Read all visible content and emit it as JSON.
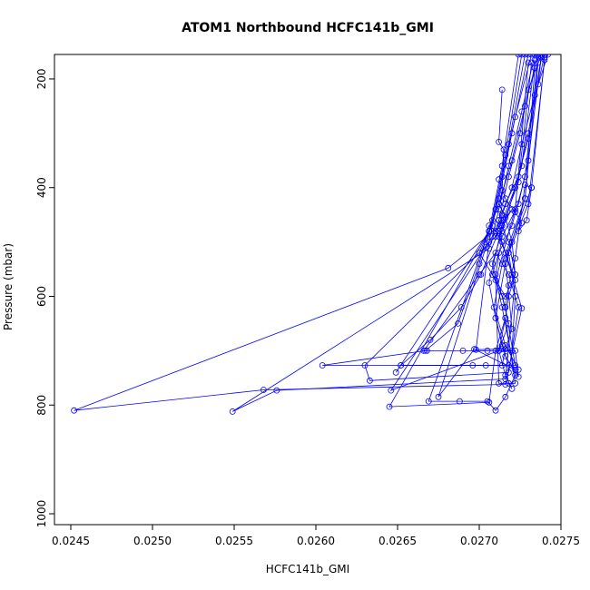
{
  "chart_data": {
    "type": "line",
    "title": "ATOM1 Northbound HCFC141b_GMI",
    "xlabel": "HCFC141b_GMI",
    "ylabel": "Pressure (mbar)",
    "xlim": [
      0.0244,
      0.0275
    ],
    "ylim": [
      1020,
      155
    ],
    "y_reversed": true,
    "x_ticks": [
      "0.0245",
      "0.0250",
      "0.0255",
      "0.0260",
      "0.0265",
      "0.0270",
      "0.0275"
    ],
    "x_tick_values": [
      0.0245,
      0.025,
      0.0255,
      0.026,
      0.0265,
      0.027,
      0.0275
    ],
    "y_ticks": [
      "200",
      "400",
      "600",
      "800",
      "1000"
    ],
    "y_tick_values": [
      200,
      400,
      600,
      800,
      1000
    ],
    "line_color": "#0000ff",
    "marker": "open-circle",
    "grid": false,
    "series": [
      {
        "x": [
          0.0274,
          0.02736,
          0.0273,
          0.02722,
          0.02713,
          0.02681,
          0.02452,
          0.02568,
          0.02716,
          0.02726,
          0.0272,
          0.02714,
          0.0271,
          0.02706,
          0.027,
          0.02687,
          0.02667,
          0.02604,
          0.02696,
          0.02714,
          0.02716,
          0.0272,
          0.02716,
          0.02732,
          0.0274
        ],
        "y": [
          155,
          210,
          310,
          400,
          470,
          548,
          810,
          772,
          762,
          622,
          560,
          500,
          480,
          470,
          540,
          650,
          700,
          727,
          727,
          727,
          697,
          660,
          530,
          400,
          160
        ]
      },
      {
        "x": [
          0.02738,
          0.0273,
          0.02725,
          0.02718,
          0.02712,
          0.02706,
          0.02549,
          0.02576,
          0.02716,
          0.02722,
          0.02716,
          0.02712,
          0.02715,
          0.0272,
          0.02712,
          0.02701,
          0.02689,
          0.0267,
          0.02652,
          0.02704,
          0.02718,
          0.02714,
          0.0271,
          0.02716,
          0.02728,
          0.02736
        ],
        "y": [
          155,
          220,
          300,
          380,
          460,
          512,
          812,
          773,
          752,
          570,
          520,
          490,
          460,
          440,
          480,
          560,
          620,
          680,
          727,
          727,
          727,
          690,
          640,
          540,
          420,
          170
        ]
      },
      {
        "x": [
          0.02742,
          0.02734,
          0.02726,
          0.0272,
          0.02714,
          0.0271,
          0.0263,
          0.02633,
          0.02718,
          0.02724,
          0.02718,
          0.0271,
          0.027,
          0.02666,
          0.02668,
          0.0269,
          0.02705,
          0.0272,
          0.02722,
          0.02718,
          0.0273,
          0.0274
        ],
        "y": [
          155,
          230,
          320,
          400,
          450,
          490,
          727,
          755,
          740,
          620,
          560,
          520,
          560,
          700,
          700,
          700,
          700,
          700,
          600,
          520,
          430,
          165
        ]
      },
      {
        "x": [
          0.02736,
          0.02728,
          0.0272,
          0.02712,
          0.02706,
          0.02649,
          0.02652,
          0.02722,
          0.02716,
          0.0271,
          0.02714,
          0.02724,
          0.0273,
          0.02738
        ],
        "y": [
          155,
          250,
          350,
          430,
          480,
          740,
          727,
          727,
          620,
          560,
          490,
          430,
          350,
          160
        ]
      },
      {
        "x": [
          0.02734,
          0.02726,
          0.02718,
          0.02712,
          0.02708,
          0.02646,
          0.02712,
          0.02718,
          0.02714,
          0.02708,
          0.02712,
          0.0272,
          0.02728,
          0.02736
        ],
        "y": [
          155,
          260,
          360,
          440,
          490,
          773,
          700,
          650,
          600,
          560,
          520,
          470,
          380,
          160
        ]
      },
      {
        "x": [
          0.02732,
          0.02722,
          0.02714,
          0.02708,
          0.02645,
          0.02706,
          0.0271,
          0.02716,
          0.02722,
          0.02712,
          0.0271,
          0.02722,
          0.0273
        ],
        "y": [
          155,
          270,
          380,
          470,
          803,
          795,
          700,
          640,
          760,
          760,
          570,
          440,
          170
        ]
      },
      {
        "x": [
          0.0273,
          0.0272,
          0.02712,
          0.02706,
          0.02669,
          0.02688,
          0.02705,
          0.0271,
          0.02716,
          0.02722,
          0.02714,
          0.02708,
          0.02714,
          0.02726,
          0.02734
        ],
        "y": [
          155,
          300,
          420,
          480,
          793,
          793,
          793,
          810,
          785,
          745,
          620,
          540,
          480,
          360,
          165
        ]
      },
      {
        "x": [
          0.02728,
          0.02718,
          0.0271,
          0.02706,
          0.02698,
          0.02714,
          0.02722,
          0.02724,
          0.02716,
          0.0271,
          0.02706,
          0.02714,
          0.02724,
          0.02732
        ],
        "y": [
          155,
          320,
          440,
          500,
          698,
          697,
          700,
          748,
          710,
          640,
          575,
          470,
          390,
          170
        ]
      },
      {
        "x": [
          0.02726,
          0.02716,
          0.02708,
          0.02704,
          0.02675,
          0.02697,
          0.02722,
          0.02724,
          0.02716,
          0.02709,
          0.02714,
          0.02728,
          0.02734
        ],
        "y": [
          155,
          340,
          460,
          510,
          785,
          697,
          735,
          735,
          690,
          620,
          540,
          420,
          180
        ]
      },
      {
        "x": [
          0.02724,
          0.02714,
          0.02706,
          0.027,
          0.02716,
          0.02722,
          0.02718,
          0.02712,
          0.02716,
          0.02724,
          0.0273,
          0.02738
        ],
        "y": [
          155,
          360,
          480,
          520,
          600,
          560,
          500,
          460,
          430,
          380,
          300,
          160
        ]
      },
      {
        "x": [
          0.02714,
          0.02712,
          0.02715,
          0.02714,
          0.02712,
          0.02716,
          0.0272,
          0.02722,
          0.02718,
          0.02716,
          0.02712,
          0.02716,
          0.0272,
          0.02718
        ],
        "y": [
          220,
          316,
          330,
          405,
          430,
          455,
          500,
          560,
          600,
          640,
          700,
          745,
          770,
          760
        ]
      },
      {
        "x": [
          0.02712,
          0.02716,
          0.02722,
          0.02726,
          0.02724,
          0.02729,
          0.02732,
          0.02728,
          0.02722,
          0.02718,
          0.02716
        ],
        "y": [
          385,
          420,
          445,
          465,
          480,
          460,
          400,
          395,
          530,
          580,
          620
        ]
      }
    ]
  }
}
